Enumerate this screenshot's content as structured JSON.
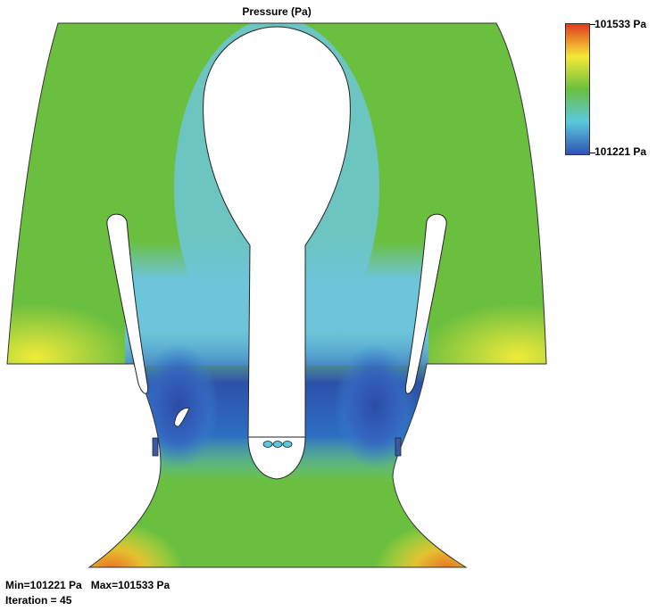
{
  "title": "Pressure (Pa)",
  "legend": {
    "max_label": "101533 Pa",
    "min_label": "101221 Pa",
    "colors": [
      "#e03a1e",
      "#f5e938",
      "#6bbf3f",
      "#5ac8dc",
      "#2f55b0"
    ]
  },
  "stats": {
    "minmax": "Min=101221 Pa   Max=101533 Pa",
    "iteration": "Iteration = 45"
  },
  "colors": {
    "green": "#6bbf3f",
    "cyan": "#6cc5d8",
    "blue": "#2c4fa8",
    "yellow": "#e9e63a",
    "orange": "#e9732a"
  }
}
